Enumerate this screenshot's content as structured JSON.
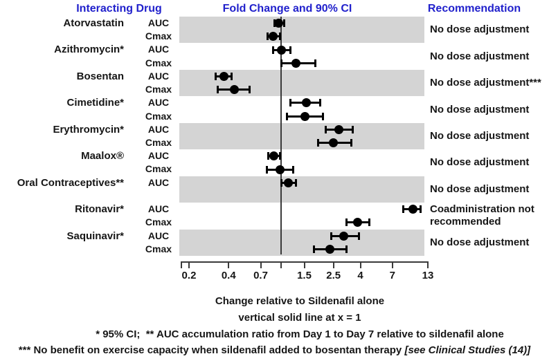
{
  "headers": {
    "interacting_drug": "Interacting Drug",
    "fold_change": "Fold Change and 90% CI",
    "recommendation": "Recommendation"
  },
  "colors": {
    "header_blue": "#2121CC",
    "band_gray": "#D4D4D4",
    "marker_black": "#000000"
  },
  "chart_data": {
    "type": "scatter",
    "variant": "forest-plot-with-error-bars",
    "title": "Fold Change and 90% CI",
    "x_scale": "log",
    "x_range": [
      0.2,
      13
    ],
    "reference_line_x": 1,
    "xlabel": "Change relative to Sildenafil alone",
    "reference_note": "vertical solid line at x = 1",
    "ticks": [
      {
        "v": 0.2,
        "label": "0.2"
      },
      {
        "v": 0.4,
        "label": "0.4"
      },
      {
        "v": 0.7,
        "label": "0.7"
      },
      {
        "v": 1,
        "label": ""
      },
      {
        "v": 1.5,
        "label": "1.5"
      },
      {
        "v": 2.5,
        "label": "2.5"
      },
      {
        "v": 4,
        "label": "4"
      },
      {
        "v": 7,
        "label": "7"
      },
      {
        "v": 13,
        "label": "13"
      }
    ],
    "groups": [
      {
        "drug": "Atorvastatin",
        "shaded": true,
        "recommendation": "No dose adjustment",
        "rows": [
          {
            "metric": "AUC",
            "value": 0.96,
            "lo": 0.89,
            "hi": 1.05
          },
          {
            "metric": "Cmax",
            "value": 0.87,
            "lo": 0.79,
            "hi": 0.98
          }
        ]
      },
      {
        "drug": "Azithromycin*",
        "shaded": false,
        "recommendation": "No dose adjustment",
        "rows": [
          {
            "metric": "AUC",
            "value": 1.01,
            "lo": 0.87,
            "hi": 1.18
          },
          {
            "metric": "Cmax",
            "value": 1.29,
            "lo": 1.0,
            "hi": 1.83
          }
        ]
      },
      {
        "drug": "Bosentan",
        "shaded": true,
        "recommendation": "No dose adjustment***",
        "rows": [
          {
            "metric": "AUC",
            "value": 0.37,
            "lo": 0.32,
            "hi": 0.42
          },
          {
            "metric": "Cmax",
            "value": 0.44,
            "lo": 0.33,
            "hi": 0.58
          }
        ]
      },
      {
        "drug": "Cimetidine*",
        "shaded": false,
        "recommendation": "No dose adjustment",
        "rows": [
          {
            "metric": "AUC",
            "value": 1.55,
            "lo": 1.18,
            "hi": 1.97
          },
          {
            "metric": "Cmax",
            "value": 1.51,
            "lo": 1.11,
            "hi": 2.07
          }
        ]
      },
      {
        "drug": "Erythromycin*",
        "shaded": true,
        "recommendation": "No dose adjustment",
        "rows": [
          {
            "metric": "AUC",
            "value": 2.76,
            "lo": 2.17,
            "hi": 3.5
          },
          {
            "metric": "Cmax",
            "value": 2.5,
            "lo": 1.9,
            "hi": 3.4
          }
        ]
      },
      {
        "drug": "Maalox®",
        "shaded": false,
        "recommendation": "No dose adjustment",
        "rows": [
          {
            "metric": "AUC",
            "value": 0.88,
            "lo": 0.8,
            "hi": 0.98
          },
          {
            "metric": "Cmax",
            "value": 0.98,
            "lo": 0.78,
            "hi": 1.23
          }
        ]
      },
      {
        "drug": "Oral Contraceptives**",
        "shaded": true,
        "recommendation": "No dose adjustment",
        "rows": [
          {
            "metric": "AUC",
            "value": 1.14,
            "lo": 1.0,
            "hi": 1.29
          }
        ]
      },
      {
        "drug": "Ritonavir*",
        "shaded": false,
        "recommendation": "Coadministration not recommended",
        "rows": [
          {
            "metric": "AUC",
            "value": 10.0,
            "lo": 8.5,
            "hi": 11.5
          },
          {
            "metric": "Cmax",
            "value": 3.83,
            "lo": 3.15,
            "hi": 4.65
          }
        ]
      },
      {
        "drug": "Saquinavir*",
        "shaded": true,
        "recommendation": "No dose adjustment",
        "rows": [
          {
            "metric": "AUC",
            "value": 3.0,
            "lo": 2.4,
            "hi": 3.9
          },
          {
            "metric": "Cmax",
            "value": 2.36,
            "lo": 1.77,
            "hi": 3.15
          }
        ]
      }
    ]
  },
  "footnotes": {
    "line1": "* 95% CI;  ** AUC accumulation ratio from Day 1 to Day 7 relative to sildenafil alone",
    "line2": "*** No benefit on exercise capacity when sildenafil added to bosentan therapy ",
    "line2_citation": "[see Clinical Studies (14)]"
  }
}
